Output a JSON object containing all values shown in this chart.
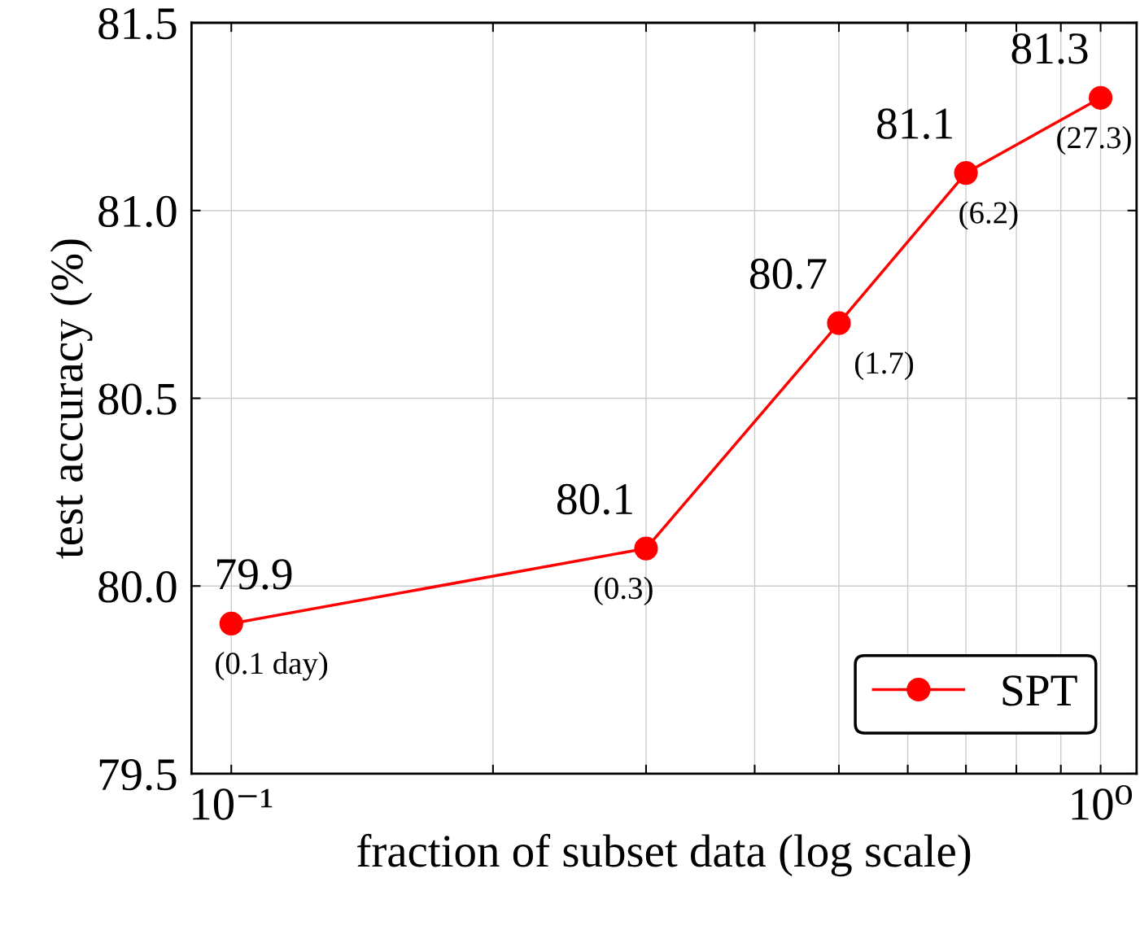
{
  "chart_data": {
    "type": "line",
    "xlabel": "fraction of subset data (log scale)",
    "ylabel": "test accuracy (%)",
    "x": [
      0.1,
      0.3,
      0.5,
      0.7,
      1.0
    ],
    "series": [
      {
        "name": "SPT",
        "color": "#ff0000",
        "values": [
          79.9,
          80.1,
          80.7,
          81.1,
          81.3
        ]
      }
    ],
    "log": "x",
    "xlim": [
      0.09,
      1.1
    ],
    "ylim": [
      79.5,
      81.5
    ],
    "xticks": [
      {
        "value": 0.1,
        "label": "10⁻¹"
      },
      {
        "value": 0.2,
        "label": null
      },
      {
        "value": 0.3,
        "label": null
      },
      {
        "value": 0.4,
        "label": null
      },
      {
        "value": 0.5,
        "label": null
      },
      {
        "value": 0.6,
        "label": null
      },
      {
        "value": 0.7,
        "label": null
      },
      {
        "value": 0.8,
        "label": null
      },
      {
        "value": 0.9,
        "label": null
      },
      {
        "value": 1.0,
        "label": "10⁰"
      }
    ],
    "yticks": [
      {
        "value": 79.5,
        "label": "79.5"
      },
      {
        "value": 80.0,
        "label": "80.0"
      },
      {
        "value": 80.5,
        "label": "80.5"
      },
      {
        "value": 81.0,
        "label": "81.0"
      },
      {
        "value": 81.5,
        "label": "81.5"
      }
    ],
    "grid": true,
    "legend": "bottom right",
    "marker": "circle",
    "line_style": "solid",
    "data_labels": true,
    "annotations": [
      {
        "text": "(0.1 day)",
        "x": 0.1,
        "y": 79.9
      },
      {
        "text": "(0.3)",
        "x": 0.3,
        "y": 80.1
      },
      {
        "text": "(1.7)",
        "x": 0.5,
        "y": 80.7
      },
      {
        "text": "(6.2)",
        "x": 0.7,
        "y": 81.1
      },
      {
        "text": "(27.3)",
        "x": 1.0,
        "y": 81.3
      }
    ]
  }
}
